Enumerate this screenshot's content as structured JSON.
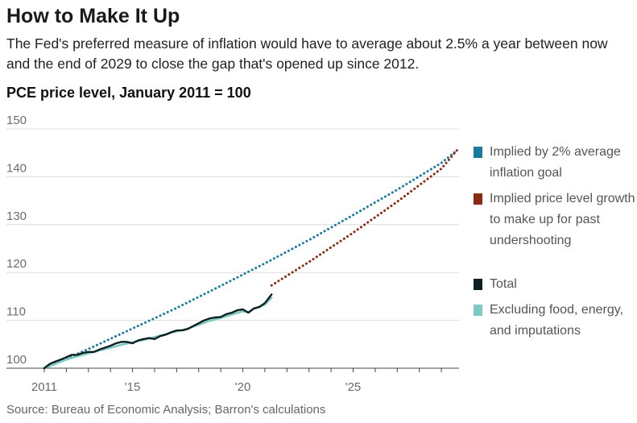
{
  "title": "How to Make It Up",
  "subtitle": "The Fed's preferred measure of inflation would have to average about 2.5% a year between now and the end of 2029 to close the gap that's opened up since 2012.",
  "source": "Source: Bureau of Economic Analysis; Barron's calculations",
  "chart_data": {
    "type": "line",
    "title": "PCE price level, January 2011 = 100",
    "ylim": [
      100,
      150
    ],
    "xlim": [
      2011,
      2029.8
    ],
    "y_ticks": [
      100,
      110,
      120,
      130,
      140,
      150
    ],
    "x_tick_labels": [
      {
        "x": 2011,
        "label": "2011"
      },
      {
        "x": 2015,
        "label": "'15"
      },
      {
        "x": 2020,
        "label": "'20"
      },
      {
        "x": 2025,
        "label": "'25"
      }
    ],
    "grid": true,
    "legend_position": "right",
    "series": [
      {
        "name": "Implied by 2% average inflation goal",
        "color": "#1b7b9c",
        "style": "dotted",
        "x": [
          2011,
          2013,
          2015,
          2017,
          2019,
          2021,
          2023,
          2025,
          2027,
          2029,
          2029.7
        ],
        "y": [
          100.0,
          104.0,
          108.3,
          112.6,
          117.2,
          121.9,
          126.8,
          132.0,
          137.3,
          142.9,
          145.5
        ]
      },
      {
        "name": "Implied price level growth to make up for past undershooting",
        "color": "#8b2a12",
        "style": "dotted",
        "x": [
          2021.3,
          2023,
          2025,
          2027,
          2029,
          2029.7
        ],
        "y": [
          117.3,
          122.2,
          128.3,
          134.8,
          141.7,
          145.5
        ]
      },
      {
        "name": "Total",
        "color": "#0e1f1f",
        "style": "solid",
        "x": [
          2011,
          2011.25,
          2011.5,
          2011.75,
          2012,
          2012.25,
          2012.5,
          2012.75,
          2013,
          2013.25,
          2013.5,
          2013.75,
          2014,
          2014.25,
          2014.5,
          2014.75,
          2015,
          2015.25,
          2015.5,
          2015.75,
          2016,
          2016.25,
          2016.5,
          2016.75,
          2017,
          2017.25,
          2017.5,
          2017.75,
          2018,
          2018.25,
          2018.5,
          2018.75,
          2019,
          2019.25,
          2019.5,
          2019.75,
          2020,
          2020.25,
          2020.5,
          2020.75,
          2021,
          2021.3
        ],
        "y": [
          100.0,
          100.9,
          101.4,
          101.8,
          102.3,
          102.8,
          102.8,
          103.2,
          103.4,
          103.4,
          103.9,
          104.3,
          104.7,
          105.2,
          105.5,
          105.5,
          105.2,
          105.8,
          106.1,
          106.3,
          106.1,
          106.7,
          107.0,
          107.5,
          107.9,
          107.9,
          108.2,
          108.8,
          109.4,
          110.0,
          110.4,
          110.6,
          110.7,
          111.3,
          111.6,
          112.1,
          112.3,
          111.6,
          112.5,
          112.8,
          113.6,
          115.4
        ]
      },
      {
        "name": "Excluding food, energy, and imputations",
        "color": "#7fc9c3",
        "style": "solid",
        "x": [
          2011,
          2011.5,
          2012,
          2012.5,
          2013,
          2013.5,
          2014,
          2014.5,
          2015,
          2015.5,
          2016,
          2016.5,
          2017,
          2017.5,
          2018,
          2018.5,
          2019,
          2019.5,
          2020,
          2020.25,
          2020.5,
          2021,
          2021.3
        ],
        "y": [
          100.0,
          100.9,
          101.8,
          102.5,
          103.1,
          103.7,
          104.3,
          104.9,
          105.4,
          105.9,
          106.5,
          107.1,
          107.7,
          108.3,
          109.1,
          109.9,
          110.5,
          111.2,
          111.9,
          111.7,
          112.4,
          113.3,
          114.7
        ]
      }
    ]
  }
}
